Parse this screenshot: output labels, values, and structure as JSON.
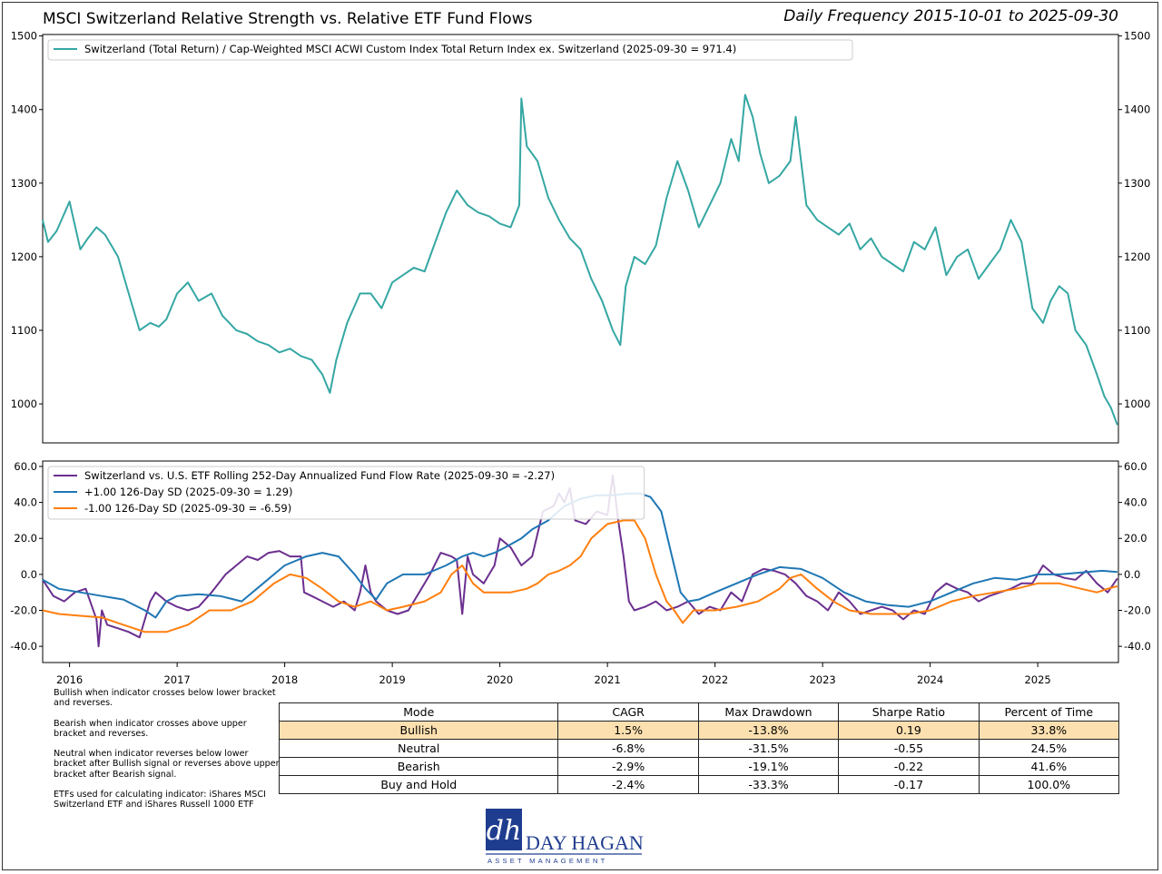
{
  "header": {
    "title": "MSCI Switzerland Relative Strength vs. Relative ETF Fund Flows",
    "subtitle": "Daily Frequency 2015-10-01 to 2025-09-30"
  },
  "colors": {
    "price": "#35a7a3",
    "flow": "#6b2f8f",
    "upper": "#1f77b4",
    "lower": "#ff7f0e",
    "highlight": "#fde0b0"
  },
  "chart_data": [
    {
      "type": "line",
      "title": "Switzerland Relative Strength",
      "legend": [
        "Switzerland (Total Return) / Cap-Weighted MSCI ACWI Custom Index Total Return Index ex. Switzerland (2025-09-30 = 971.4)"
      ],
      "legend_position": "top-left",
      "ylim": [
        947,
        1502
      ],
      "yticks": [
        1000,
        1100,
        1200,
        1300,
        1400,
        1500
      ],
      "ytick_labels": [
        "1000",
        "1100",
        "1200",
        "1300",
        "1400",
        "1500"
      ],
      "series": [
        {
          "name": "Switzerland Relative Strength",
          "x": [
            2015.75,
            2015.8,
            2015.88,
            2016.0,
            2016.1,
            2016.17,
            2016.25,
            2016.33,
            2016.45,
            2016.55,
            2016.65,
            2016.75,
            2016.83,
            2016.9,
            2017.0,
            2017.1,
            2017.2,
            2017.32,
            2017.42,
            2017.55,
            2017.65,
            2017.75,
            2017.85,
            2017.95,
            2018.05,
            2018.15,
            2018.25,
            2018.35,
            2018.42,
            2018.48,
            2018.58,
            2018.7,
            2018.8,
            2018.9,
            2019.0,
            2019.1,
            2019.2,
            2019.3,
            2019.4,
            2019.5,
            2019.6,
            2019.7,
            2019.8,
            2019.9,
            2020.0,
            2020.1,
            2020.18,
            2020.2,
            2020.25,
            2020.35,
            2020.45,
            2020.55,
            2020.65,
            2020.75,
            2020.85,
            2020.95,
            2021.05,
            2021.12,
            2021.17,
            2021.25,
            2021.35,
            2021.45,
            2021.55,
            2021.65,
            2021.75,
            2021.85,
            2021.95,
            2022.05,
            2022.15,
            2022.22,
            2022.28,
            2022.35,
            2022.42,
            2022.5,
            2022.6,
            2022.7,
            2022.75,
            2022.85,
            2022.95,
            2023.05,
            2023.15,
            2023.25,
            2023.35,
            2023.45,
            2023.55,
            2023.65,
            2023.75,
            2023.85,
            2023.95,
            2024.05,
            2024.15,
            2024.25,
            2024.35,
            2024.45,
            2024.55,
            2024.65,
            2024.75,
            2024.85,
            2024.95,
            2025.05,
            2025.12,
            2025.2,
            2025.28,
            2025.35,
            2025.45,
            2025.55,
            2025.62,
            2025.68,
            2025.74
          ],
          "values": [
            1250,
            1220,
            1235,
            1275,
            1210,
            1225,
            1240,
            1230,
            1200,
            1150,
            1100,
            1110,
            1105,
            1115,
            1150,
            1165,
            1140,
            1150,
            1120,
            1100,
            1095,
            1085,
            1080,
            1070,
            1075,
            1065,
            1060,
            1040,
            1015,
            1060,
            1110,
            1150,
            1150,
            1130,
            1165,
            1175,
            1185,
            1180,
            1220,
            1260,
            1290,
            1270,
            1260,
            1255,
            1245,
            1240,
            1270,
            1415,
            1350,
            1330,
            1280,
            1250,
            1225,
            1210,
            1170,
            1140,
            1100,
            1080,
            1160,
            1200,
            1190,
            1215,
            1280,
            1330,
            1290,
            1240,
            1270,
            1300,
            1360,
            1330,
            1420,
            1390,
            1340,
            1300,
            1310,
            1330,
            1390,
            1270,
            1250,
            1240,
            1230,
            1245,
            1210,
            1225,
            1200,
            1190,
            1180,
            1220,
            1210,
            1240,
            1175,
            1200,
            1210,
            1170,
            1190,
            1210,
            1250,
            1220,
            1130,
            1110,
            1140,
            1160,
            1150,
            1100,
            1080,
            1040,
            1010,
            995,
            971.4
          ]
        }
      ]
    },
    {
      "type": "line",
      "title": "Relative ETF Fund Flows",
      "legend": [
        "Switzerland vs. U.S. ETF Rolling 252-Day Annualized Fund Flow Rate (2025-09-30 = -2.27)",
        "+1.00 126-Day SD (2025-09-30 = 1.29)",
        "-1.00 126-Day SD (2025-09-30 = -6.59)"
      ],
      "legend_position": "top-left",
      "ylim": [
        -49,
        63
      ],
      "yticks": [
        -40,
        -20,
        0,
        20,
        40,
        60
      ],
      "ytick_labels": [
        "-40.0",
        "-20.0",
        "0.0",
        "20.0",
        "40.0",
        "60.0"
      ],
      "x_range": [
        2015.75,
        2025.75
      ],
      "xticks": [
        2016,
        2017,
        2018,
        2019,
        2020,
        2021,
        2022,
        2023,
        2024,
        2025
      ],
      "xtick_labels": [
        "2016",
        "2017",
        "2018",
        "2019",
        "2020",
        "2021",
        "2022",
        "2023",
        "2024",
        "2025"
      ],
      "series": [
        {
          "name": "Fund Flow Rate",
          "x": [
            2015.75,
            2015.85,
            2015.95,
            2016.05,
            2016.15,
            2016.25,
            2016.27,
            2016.3,
            2016.35,
            2016.45,
            2016.55,
            2016.65,
            2016.75,
            2016.8,
            2016.9,
            2017.0,
            2017.1,
            2017.2,
            2017.32,
            2017.45,
            2017.55,
            2017.65,
            2017.75,
            2017.85,
            2017.95,
            2018.05,
            2018.15,
            2018.18,
            2018.25,
            2018.35,
            2018.45,
            2018.55,
            2018.65,
            2018.7,
            2018.75,
            2018.8,
            2018.85,
            2018.95,
            2019.05,
            2019.15,
            2019.25,
            2019.35,
            2019.45,
            2019.55,
            2019.6,
            2019.65,
            2019.7,
            2019.75,
            2019.85,
            2019.95,
            2020.0,
            2020.1,
            2020.2,
            2020.3,
            2020.4,
            2020.5,
            2020.55,
            2020.6,
            2020.65,
            2020.7,
            2020.8,
            2020.9,
            2021.0,
            2021.05,
            2021.1,
            2021.15,
            2021.2,
            2021.25,
            2021.35,
            2021.45,
            2021.55,
            2021.65,
            2021.75,
            2021.85,
            2021.95,
            2022.05,
            2022.15,
            2022.25,
            2022.35,
            2022.45,
            2022.55,
            2022.65,
            2022.75,
            2022.85,
            2022.95,
            2023.05,
            2023.15,
            2023.25,
            2023.35,
            2023.45,
            2023.55,
            2023.65,
            2023.75,
            2023.85,
            2023.95,
            2024.05,
            2024.15,
            2024.25,
            2024.35,
            2024.45,
            2024.55,
            2024.65,
            2024.75,
            2024.85,
            2024.95,
            2025.05,
            2025.15,
            2025.25,
            2025.35,
            2025.45,
            2025.55,
            2025.65,
            2025.74
          ],
          "values": [
            -3,
            -12,
            -15,
            -10,
            -8,
            -25,
            -40,
            -20,
            -28,
            -30,
            -32,
            -35,
            -15,
            -10,
            -15,
            -18,
            -20,
            -18,
            -10,
            0,
            5,
            10,
            8,
            12,
            13,
            10,
            10,
            -10,
            -12,
            -15,
            -18,
            -15,
            -20,
            -10,
            5,
            -10,
            -15,
            -20,
            -22,
            -20,
            -10,
            0,
            12,
            10,
            8,
            -22,
            10,
            0,
            -5,
            5,
            20,
            15,
            5,
            10,
            35,
            38,
            45,
            40,
            48,
            30,
            28,
            35,
            33,
            55,
            30,
            10,
            -15,
            -20,
            -18,
            -15,
            -20,
            -18,
            -15,
            -22,
            -18,
            -20,
            -10,
            -15,
            0,
            3,
            2,
            0,
            -5,
            -12,
            -15,
            -20,
            -10,
            -15,
            -22,
            -20,
            -18,
            -20,
            -25,
            -20,
            -22,
            -10,
            -5,
            -8,
            -10,
            -15,
            -12,
            -10,
            -8,
            -5,
            -5,
            5,
            0,
            -2,
            -3,
            2,
            -5,
            -10,
            -2.27
          ]
        },
        {
          "name": "+1.00 126-Day SD",
          "x": [
            2015.75,
            2015.9,
            2016.1,
            2016.3,
            2016.5,
            2016.7,
            2016.8,
            2016.9,
            2017.0,
            2017.2,
            2017.4,
            2017.6,
            2017.8,
            2018.0,
            2018.2,
            2018.35,
            2018.5,
            2018.65,
            2018.75,
            2018.85,
            2018.95,
            2019.1,
            2019.3,
            2019.5,
            2019.65,
            2019.75,
            2019.85,
            2019.95,
            2020.05,
            2020.2,
            2020.3,
            2020.45,
            2020.6,
            2020.75,
            2020.9,
            2021.05,
            2021.2,
            2021.3,
            2021.4,
            2021.5,
            2021.6,
            2021.68,
            2021.75,
            2021.85,
            2022.0,
            2022.2,
            2022.4,
            2022.6,
            2022.8,
            2023.0,
            2023.2,
            2023.4,
            2023.6,
            2023.8,
            2024.0,
            2024.2,
            2024.4,
            2024.6,
            2024.8,
            2025.0,
            2025.2,
            2025.4,
            2025.6,
            2025.74
          ],
          "values": [
            -3,
            -8,
            -10,
            -12,
            -14,
            -20,
            -24,
            -15,
            -12,
            -11,
            -12,
            -15,
            -5,
            5,
            10,
            12,
            10,
            0,
            -8,
            -14,
            -5,
            0,
            0,
            5,
            10,
            12,
            10,
            12,
            15,
            20,
            25,
            30,
            38,
            42,
            44,
            44,
            45,
            45,
            43,
            35,
            10,
            -10,
            -15,
            -14,
            -10,
            -5,
            0,
            4,
            3,
            -2,
            -10,
            -15,
            -17,
            -18,
            -15,
            -10,
            -5,
            -2,
            -3,
            0,
            0,
            1,
            2,
            1.29
          ]
        },
        {
          "name": "-1.00 126-Day SD",
          "x": [
            2015.75,
            2015.9,
            2016.1,
            2016.3,
            2016.5,
            2016.7,
            2016.9,
            2017.1,
            2017.3,
            2017.5,
            2017.7,
            2017.9,
            2018.05,
            2018.2,
            2018.35,
            2018.5,
            2018.65,
            2018.8,
            2018.95,
            2019.1,
            2019.3,
            2019.45,
            2019.55,
            2019.65,
            2019.75,
            2019.85,
            2019.95,
            2020.1,
            2020.25,
            2020.35,
            2020.45,
            2020.55,
            2020.65,
            2020.75,
            2020.85,
            2021.0,
            2021.15,
            2021.25,
            2021.35,
            2021.45,
            2021.55,
            2021.62,
            2021.7,
            2021.8,
            2022.0,
            2022.2,
            2022.4,
            2022.6,
            2022.7,
            2022.8,
            2022.95,
            2023.1,
            2023.25,
            2023.45,
            2023.6,
            2023.8,
            2024.0,
            2024.2,
            2024.4,
            2024.6,
            2024.8,
            2025.0,
            2025.2,
            2025.4,
            2025.55,
            2025.65,
            2025.74
          ],
          "values": [
            -20,
            -22,
            -23,
            -24,
            -28,
            -32,
            -32,
            -28,
            -20,
            -20,
            -15,
            -5,
            0,
            -2,
            -8,
            -15,
            -18,
            -15,
            -20,
            -18,
            -15,
            -10,
            0,
            5,
            -5,
            -10,
            -10,
            -10,
            -8,
            -5,
            0,
            2,
            5,
            10,
            20,
            28,
            30,
            30,
            20,
            0,
            -15,
            -20,
            -27,
            -20,
            -20,
            -18,
            -15,
            -8,
            -2,
            0,
            -8,
            -15,
            -20,
            -22,
            -22,
            -22,
            -20,
            -15,
            -12,
            -10,
            -8,
            -5,
            -5,
            -8,
            -10,
            -8,
            -6.59
          ]
        }
      ]
    }
  ],
  "notes": [
    "Bullish when indicator crosses below lower bracket and reverses.",
    "Bearish when indicator crosses above upper bracket and reverses.",
    "Neutral when indicator reverses below lower bracket after Bullish signal or reverses above upper bracket after Bearish signal.",
    "ETFs used for calculating indicator: iShares MSCI Switzerland ETF and iShares Russell 1000 ETF"
  ],
  "table": {
    "headers": [
      "Mode",
      "CAGR",
      "Max Drawdown",
      "Sharpe Ratio",
      "Percent of Time"
    ],
    "rows": [
      [
        "Bullish",
        "1.5%",
        "-13.8%",
        "0.19",
        "33.8%"
      ],
      [
        "Neutral",
        "-6.8%",
        "-31.5%",
        "-0.55",
        "24.5%"
      ],
      [
        "Bearish",
        "-2.9%",
        "-19.1%",
        "-0.22",
        "41.6%"
      ],
      [
        "Buy and Hold",
        "-2.4%",
        "-33.3%",
        "-0.17",
        "100.0%"
      ]
    ]
  },
  "logo": {
    "monogram": "dh",
    "name": "DAY HAGAN",
    "tagline": "ASSET MANAGEMENT",
    "color": "#1f3d8f"
  }
}
